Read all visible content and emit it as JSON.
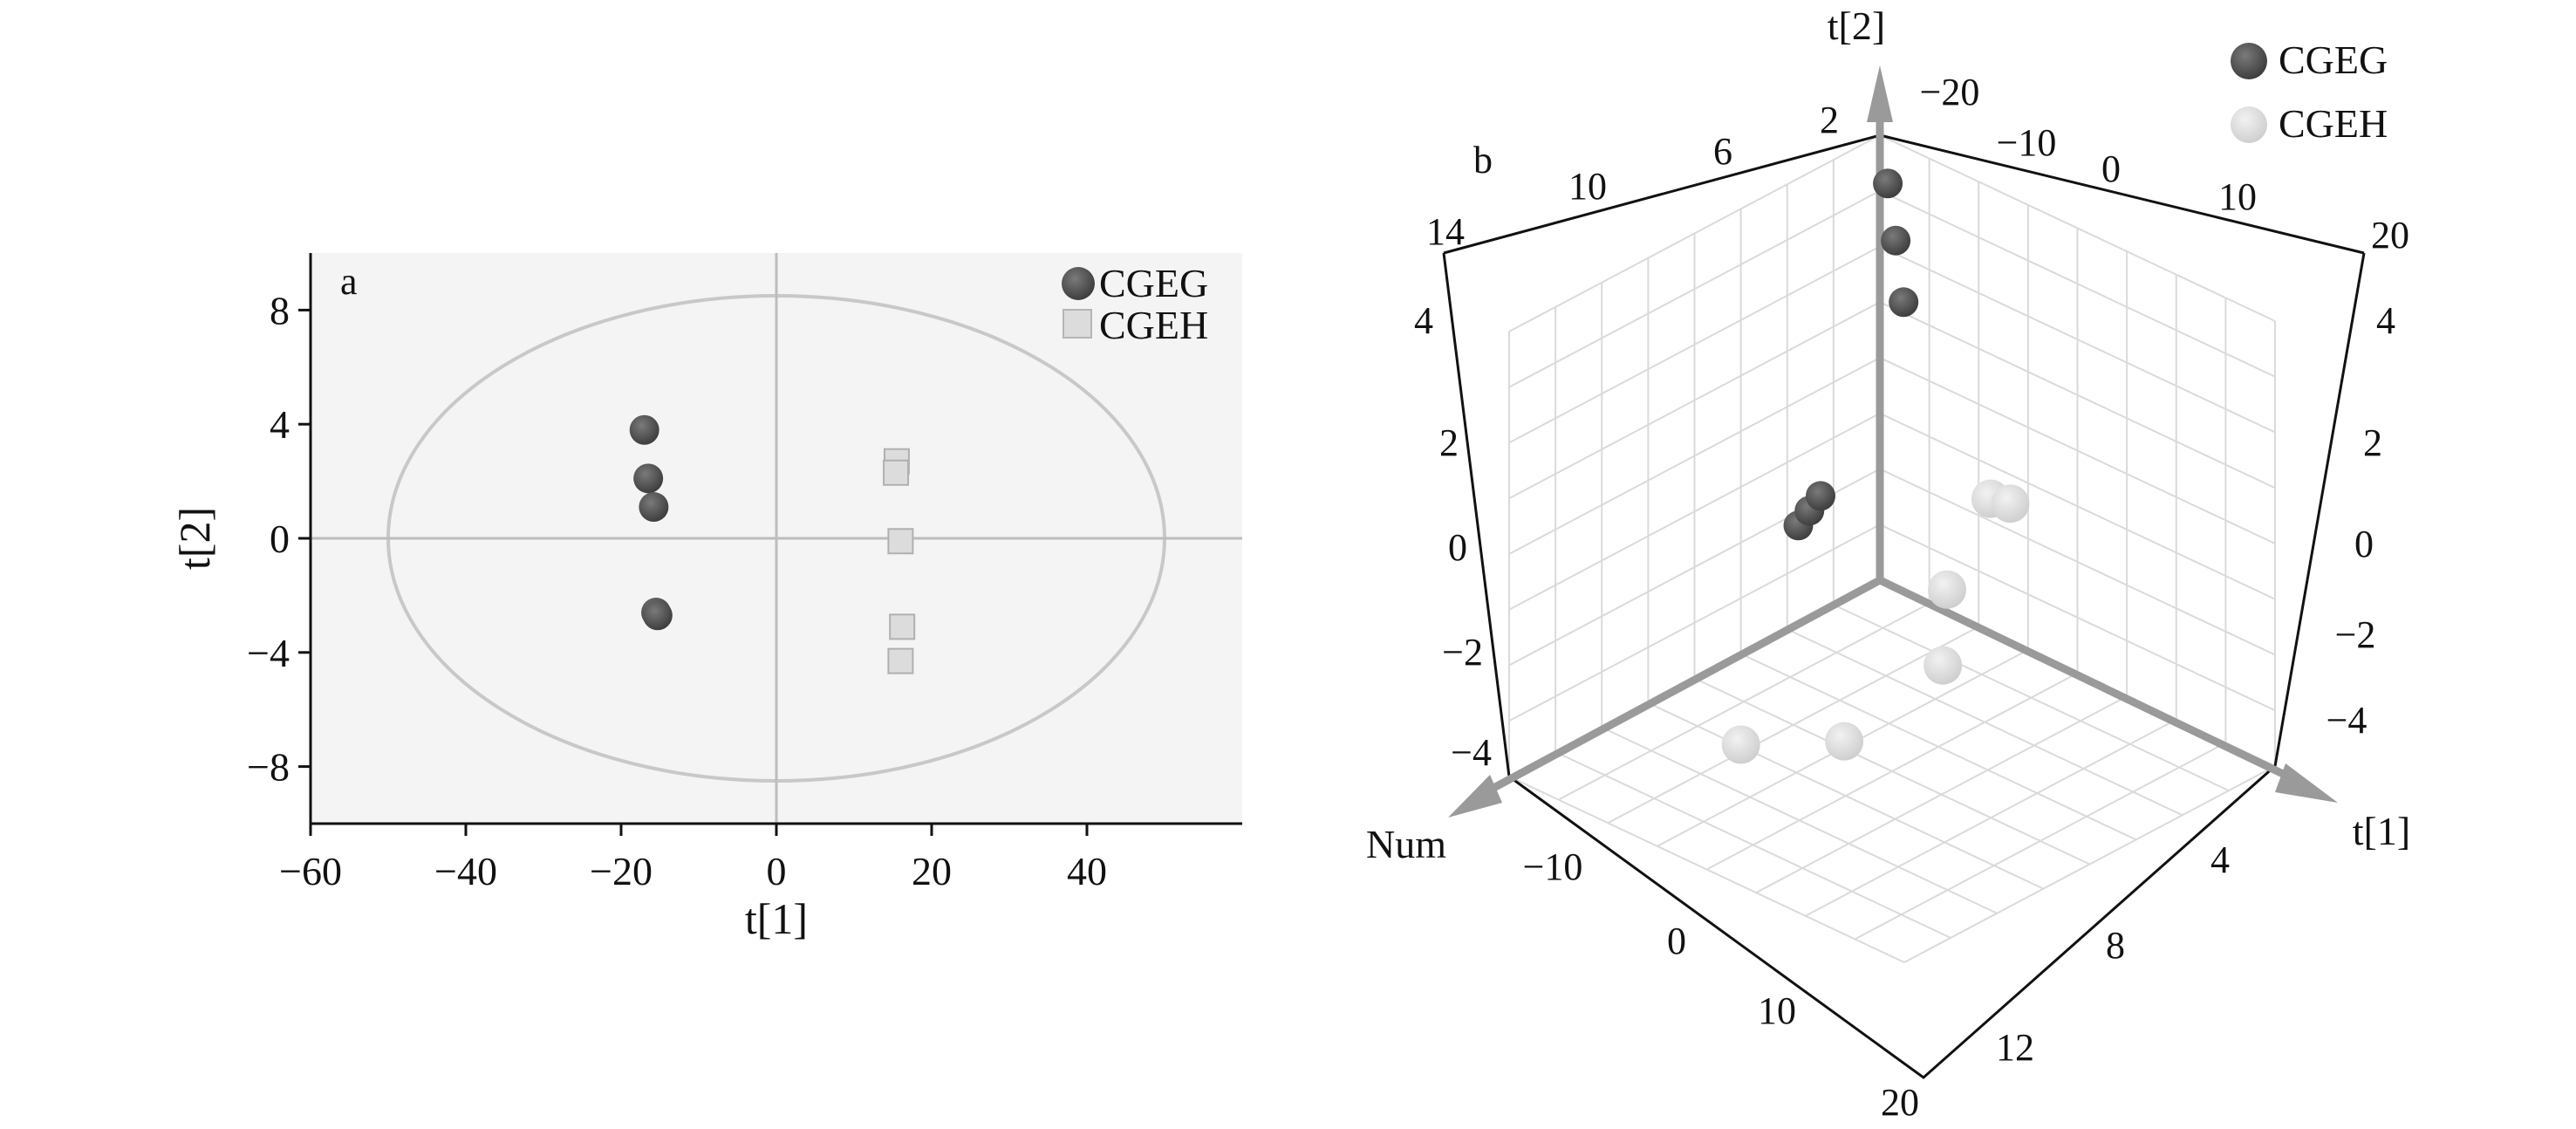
{
  "colors": {
    "cgeg": "#5a5a5a",
    "cgeh": "#dcdcdc",
    "plot_bg": "#f4f4f4",
    "ellipse": "#c8c8c8",
    "zero_lines": "#bdbdbd",
    "grid3d": "#dadada",
    "axis_arrow": "#9a9a9a"
  },
  "chart_data": [
    {
      "type": "scatter",
      "panel_label": "a",
      "xlabel": "t[1]",
      "ylabel": "t[2]",
      "xlim": [
        -60,
        60
      ],
      "ylim": [
        -10,
        10
      ],
      "x_ticks": [
        "−60",
        "−40",
        "−20",
        "0",
        "20",
        "40"
      ],
      "x_tick_values": [
        -60,
        -40,
        -20,
        0,
        20,
        40
      ],
      "y_ticks": [
        "−8",
        "−4",
        "0",
        "4",
        "8"
      ],
      "y_tick_values": [
        -8,
        -4,
        0,
        4,
        8
      ],
      "grid": false,
      "legend_position": "top-right",
      "hotelling_ellipse": {
        "cx": 0,
        "cy": 0,
        "rx": 50,
        "ry": 8.5
      },
      "series": [
        {
          "name": "CGEG",
          "marker": "circle",
          "points": [
            [
              -17,
              3.8
            ],
            [
              -16.5,
              2.1
            ],
            [
              -15.8,
              1.1
            ],
            [
              -15.5,
              -2.6
            ],
            [
              -15.3,
              -2.7
            ]
          ]
        },
        {
          "name": "CGEH",
          "marker": "square",
          "points": [
            [
              15.5,
              2.7
            ],
            [
              15.4,
              2.3
            ],
            [
              16,
              -0.1
            ],
            [
              16.2,
              -3.1
            ],
            [
              16,
              -4.3
            ]
          ]
        }
      ]
    },
    {
      "type": "scatter",
      "projection": "3d",
      "panel_label": "b",
      "axes": [
        "t[1]",
        "t[2]",
        "Num"
      ],
      "legend_position": "top-right",
      "grid": true,
      "axis_arrow_labels": {
        "t1": "t[1]",
        "t2": "t[2]",
        "num": "Num"
      },
      "tick_labels": {
        "top_left_edge": [
          "14",
          "10",
          "6",
          "2"
        ],
        "top_right_edge": [
          "−20",
          "−10",
          "0",
          "10",
          "20"
        ],
        "left_vertical": [
          "4",
          "2",
          "0",
          "−2",
          "−4"
        ],
        "right_vertical": [
          "4",
          "2",
          "0",
          "−2",
          "−4"
        ],
        "bottom_left_edge": [
          "−10",
          "0",
          "10",
          "20"
        ],
        "bottom_right_edge": [
          "4",
          "8",
          "12"
        ]
      },
      "series": [
        {
          "name": "CGEG",
          "points": [
            {
              "t1": -17.0,
              "t2": 3.8,
              "num": 1
            },
            {
              "t1": -16.5,
              "t2": 2.1,
              "num": 2
            },
            {
              "t1": -15.8,
              "t2": 1.1,
              "num": 3
            },
            {
              "t1": -15.5,
              "t2": -2.6,
              "num": 4
            },
            {
              "t1": -15.3,
              "t2": -2.7,
              "num": 5
            },
            {
              "t1": -15.1,
              "t2": -2.8,
              "num": 6
            }
          ]
        },
        {
          "name": "CGEH",
          "points": [
            {
              "t1": 15.5,
              "t2": 2.7,
              "num": 7
            },
            {
              "t1": 15.4,
              "t2": 2.3,
              "num": 8
            },
            {
              "t1": 16.0,
              "t2": -0.1,
              "num": 9
            },
            {
              "t1": 16.2,
              "t2": -3.1,
              "num": 10
            },
            {
              "t1": 16.0,
              "t2": -4.3,
              "num": 11
            },
            {
              "t1": 16.5,
              "t2": -4.5,
              "num": 12
            }
          ]
        }
      ]
    }
  ]
}
